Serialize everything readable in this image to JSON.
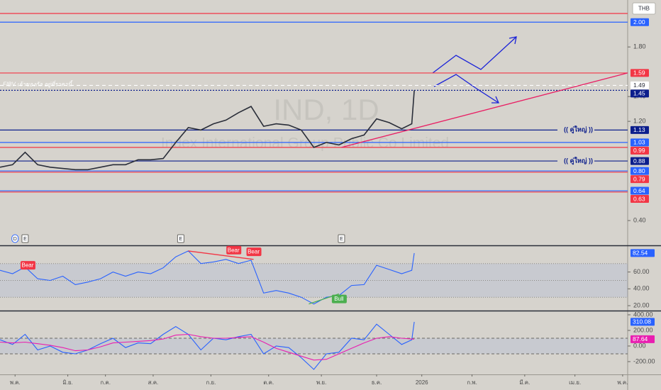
{
  "chart_data": [
    {
      "type": "line",
      "title": "IND, 1D",
      "subtitle": "Index International Group Public Co Limited",
      "currency": "THB",
      "x": [
        0,
        5,
        10,
        15,
        20,
        25,
        30,
        35,
        40,
        45,
        50,
        55,
        60,
        65,
        70,
        75,
        80,
        85,
        90,
        95,
        100,
        105,
        110,
        115,
        120,
        125,
        130,
        135,
        140,
        145,
        150,
        155,
        160,
        164,
        165
      ],
      "series": [
        {
          "color": "#2a2e39",
          "values": [
            0.83,
            0.85,
            0.95,
            0.85,
            0.83,
            0.82,
            0.81,
            0.81,
            0.83,
            0.85,
            0.85,
            0.89,
            0.89,
            0.9,
            1.03,
            1.15,
            1.13,
            1.18,
            1.21,
            1.27,
            1.32,
            1.16,
            1.18,
            1.17,
            1.13,
            0.99,
            1.03,
            1.01,
            1.06,
            1.09,
            1.22,
            1.19,
            1.14,
            1.18,
            1.45
          ]
        }
      ],
      "xlim": [
        0,
        250
      ],
      "ylim": [
        0.2,
        2.15
      ],
      "xticks": [
        {
          "value": 6,
          "label": "พ.ค."
        },
        {
          "value": 27,
          "label": "มิ.ย."
        },
        {
          "value": 42,
          "label": "ก.ค."
        },
        {
          "value": 61,
          "label": "ส.ค."
        },
        {
          "value": 84,
          "label": "ก.ย."
        },
        {
          "value": 107,
          "label": "ต.ค."
        },
        {
          "value": 128,
          "label": "พ.ย."
        },
        {
          "value": 150,
          "label": "ธ.ค."
        },
        {
          "value": 168,
          "label": "2026"
        },
        {
          "value": 188,
          "label": "ก.พ."
        },
        {
          "value": 209,
          "label": "มี.ค."
        },
        {
          "value": 229,
          "label": "เม.ย."
        },
        {
          "value": 248,
          "label": "พ.ค."
        }
      ],
      "yticks": [
        {
          "value": 0.4,
          "label": "0.40"
        },
        {
          "value": 1.2,
          "label": "1.20"
        },
        {
          "value": 1.4,
          "label": "1.40"
        },
        {
          "value": 1.8,
          "label": "1.80"
        }
      ],
      "levels": [
        {
          "value": 2.07,
          "color": "#f23645"
        },
        {
          "value": 2.0,
          "label": "2.00",
          "color": "#2962ff"
        },
        {
          "value": 1.59,
          "label": "1.59",
          "color": "#f23645"
        },
        {
          "value": 1.49,
          "label": "1.49",
          "color": "#ffffff"
        },
        {
          "value": 1.45,
          "label": "1.45",
          "color": "#0c1e8c"
        },
        {
          "value": 1.13,
          "label": "1.13",
          "color": "#0c1e8c",
          "note": "(( คู่ใหญ่ ))"
        },
        {
          "value": 1.03,
          "label": "1.03",
          "color": "#2962ff"
        },
        {
          "value": 0.99,
          "label": "0.99",
          "color": "#f23645"
        },
        {
          "value": 0.88,
          "label": "0.88",
          "color": "#0c1e8c",
          "note": "(( คู่ใหญ่ ))"
        },
        {
          "value": 0.8,
          "label": "0.80",
          "color": "#2962ff"
        },
        {
          "value": 0.79,
          "label": "0.79",
          "color": "#f23645"
        },
        {
          "value": 0.64,
          "label": "0.64",
          "color": "#2962ff"
        },
        {
          "value": 0.63,
          "label": "0.63",
          "color": "#f23645"
        }
      ],
      "annotation": {
        "text": "FIBV เจ้าของกัล อยู่ที่ราคานี้",
        "value": 1.49
      },
      "trendline": {
        "x": [
          136,
          250
        ],
        "values": [
          0.99,
          1.59
        ],
        "color": "#e91e63"
      },
      "events": [
        {
          "x": 6,
          "label": "D"
        },
        {
          "x": 10,
          "label": "E"
        },
        {
          "x": 72,
          "label": "E"
        },
        {
          "x": 136,
          "label": "E"
        }
      ]
    },
    {
      "type": "line",
      "x": [
        0,
        5,
        10,
        15,
        20,
        25,
        30,
        35,
        40,
        45,
        50,
        55,
        60,
        65,
        70,
        75,
        80,
        85,
        90,
        95,
        100,
        105,
        110,
        115,
        120,
        125,
        130,
        135,
        140,
        145,
        150,
        155,
        160,
        164,
        165
      ],
      "series": [
        {
          "color": "#2962ff",
          "values": [
            62,
            58,
            66,
            52,
            50,
            55,
            45,
            48,
            52,
            60,
            55,
            60,
            58,
            65,
            78,
            85,
            70,
            72,
            75,
            70,
            74,
            35,
            38,
            35,
            30,
            22,
            30,
            32,
            44,
            45,
            68,
            63,
            58,
            62,
            82.54
          ]
        }
      ],
      "ylim": [
        15,
        90
      ],
      "yticks": [
        {
          "value": 20,
          "label": "20.00"
        },
        {
          "value": 40,
          "label": "40.00"
        },
        {
          "value": 60,
          "label": "60.00"
        }
      ],
      "bands": [
        30,
        50,
        70
      ],
      "divergences": [
        {
          "x": [
            75,
            101
          ],
          "values": [
            85,
            75
          ],
          "color": "#f23645"
        },
        {
          "x": [
            123,
            135
          ],
          "values": [
            22,
            34
          ],
          "color": "#4caf50"
        }
      ],
      "annotations": [
        {
          "x": 11,
          "value": 68,
          "label": "Bear",
          "color": "#f23645"
        },
        {
          "x": 93,
          "value": 86,
          "label": "Bear",
          "color": "#f23645"
        },
        {
          "x": 101,
          "value": 84,
          "label": "Bear",
          "color": "#f23645"
        },
        {
          "x": 135,
          "value": 28,
          "label": "Bull",
          "color": "#4caf50"
        }
      ]
    },
    {
      "type": "line",
      "x": [
        0,
        5,
        10,
        15,
        20,
        25,
        30,
        35,
        40,
        45,
        50,
        55,
        60,
        65,
        70,
        75,
        80,
        85,
        90,
        95,
        100,
        105,
        110,
        115,
        120,
        125,
        130,
        135,
        140,
        145,
        150,
        155,
        160,
        164,
        165
      ],
      "series": [
        {
          "color": "#2962ff",
          "values": [
            80,
            20,
            150,
            -50,
            0,
            -80,
            -100,
            -50,
            30,
            100,
            -20,
            40,
            30,
            150,
            250,
            150,
            -50,
            100,
            80,
            120,
            150,
            -100,
            0,
            -20,
            -150,
            -300,
            -100,
            -80,
            100,
            80,
            280,
            150,
            20,
            80,
            310.08
          ]
        },
        {
          "color": "#e91eb0",
          "values": [
            50,
            40,
            50,
            30,
            10,
            -20,
            -60,
            -50,
            -10,
            40,
            50,
            60,
            70,
            90,
            140,
            150,
            120,
            100,
            100,
            110,
            120,
            50,
            -30,
            -80,
            -130,
            -180,
            -170,
            -100,
            -30,
            40,
            100,
            120,
            100,
            90,
            87.64
          ]
        }
      ],
      "ylim": [
        -364,
        436
      ],
      "yticks": [
        {
          "value": 400,
          "label": "400.00"
        },
        {
          "value": 200,
          "label": "200.00"
        },
        {
          "value": 0,
          "label": "0.00"
        },
        {
          "value": -200,
          "label": "-200.00"
        }
      ],
      "bands": [
        -100,
        100
      ]
    }
  ]
}
